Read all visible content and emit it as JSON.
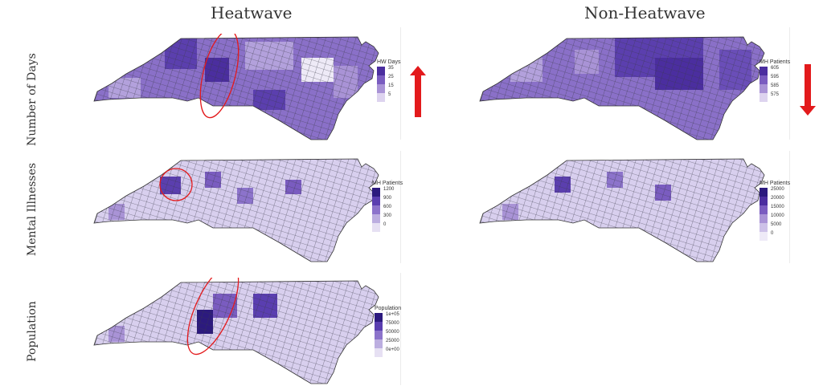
{
  "columns": {
    "heatwave": "Heatwave",
    "non_heatwave": "Non-Heatwave"
  },
  "rows": {
    "days": "Number of Days",
    "mental": "Mental Illnesses",
    "population": "Population"
  },
  "legends": {
    "hw_days": {
      "title": "HW Days",
      "ticks": [
        "35",
        "25",
        "15",
        "5"
      ],
      "colors": [
        "#4b2e9f",
        "#7a5cc0",
        "#a993d6",
        "#ddd3ef"
      ]
    },
    "nhw_patients": {
      "title": "MH Patients",
      "ticks": [
        "605",
        "595",
        "585",
        "575"
      ],
      "colors": [
        "#4b2e9f",
        "#7a5cc0",
        "#a993d6",
        "#ddd3ef"
      ]
    },
    "hw_mh": {
      "title": "MH Patients",
      "ticks": [
        "1200",
        "900",
        "600",
        "300",
        "0"
      ],
      "colors": [
        "#2c1a7e",
        "#5a3eb0",
        "#8c73cb",
        "#bcaee0",
        "#e6e0f3"
      ]
    },
    "nhw_mh": {
      "title": "MH Patients",
      "ticks": [
        "25000",
        "20000",
        "15000",
        "10000",
        "5000",
        "0"
      ],
      "colors": [
        "#2c1a7e",
        "#4b2e9f",
        "#7a5cc0",
        "#a993d6",
        "#cdc1e8",
        "#eeeaf7"
      ]
    },
    "population": {
      "title": "Population",
      "ticks": [
        "1e+05",
        "75000",
        "50000",
        "25000",
        "0e+00"
      ],
      "colors": [
        "#2c1a7e",
        "#5a3eb0",
        "#8c73cb",
        "#bcaee0",
        "#e6e0f3"
      ]
    }
  },
  "colors": {
    "arrow": "#e31a1c",
    "highlight": "#e31a1c"
  }
}
